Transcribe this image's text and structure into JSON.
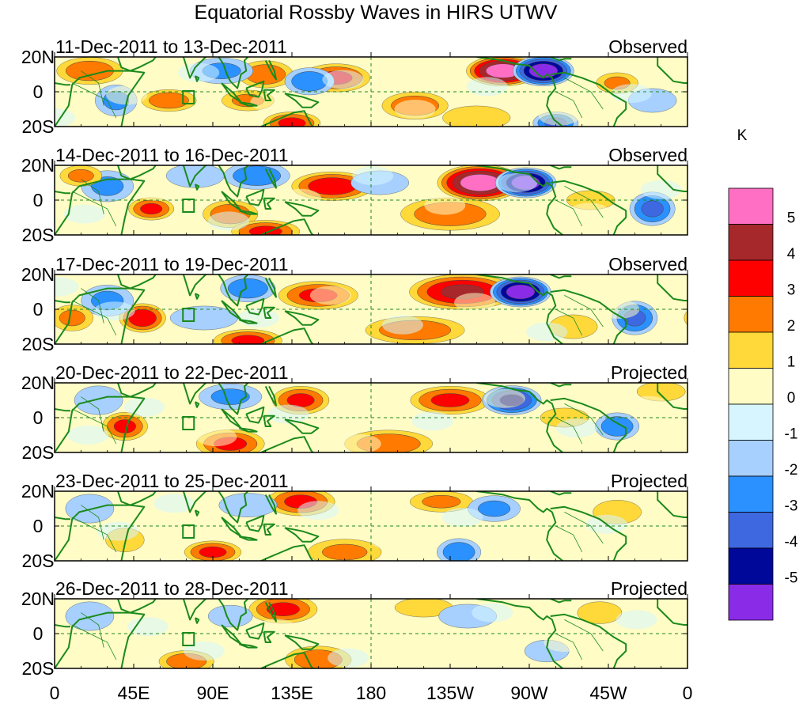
{
  "chart_data": {
    "type": "heatmap",
    "title": "Equatorial Rossby Waves in HIRS UTWV",
    "unit": "K",
    "colorbar": {
      "levels": [
        5,
        4,
        3,
        2,
        1,
        0,
        -1,
        -2,
        -3,
        -4,
        -5
      ],
      "colors": [
        "#ff6fc3",
        "#a6282b",
        "#ff0000",
        "#ff7a00",
        "#ffd83a",
        "#fffcc6",
        "#d6f5ff",
        "#a7d0ff",
        "#2a91ff",
        "#3d68e0",
        "#00089a",
        "#8a2be8"
      ]
    },
    "x_ticks": [
      "0",
      "45E",
      "90E",
      "135E",
      "180",
      "135W",
      "90W",
      "45W",
      "0"
    ],
    "x_lon": [
      0,
      45,
      90,
      135,
      180,
      225,
      270,
      315,
      360
    ],
    "y_ticks": [
      "20N",
      "0",
      "20S"
    ],
    "y_lat": [
      20,
      0,
      -20
    ],
    "panels": [
      {
        "date": "11-Dec-2011 to 13-Dec-2011",
        "status": "Observed",
        "anomalies": [
          {
            "lon": 255,
            "lat": 12,
            "value": 5.5,
            "slon": 12,
            "slat": 5
          },
          {
            "lon": 278,
            "lat": 12,
            "value": -5.5,
            "slon": 10,
            "slat": 5
          },
          {
            "lon": 160,
            "lat": 8,
            "value": 3,
            "slon": 12,
            "slat": 5
          },
          {
            "lon": 120,
            "lat": 10,
            "value": 2.5,
            "slon": 10,
            "slat": 5
          },
          {
            "lon": 145,
            "lat": 6,
            "value": -2.5,
            "slon": 9,
            "slat": 5
          },
          {
            "lon": 65,
            "lat": -5,
            "value": 2.5,
            "slon": 10,
            "slat": 4
          },
          {
            "lon": 110,
            "lat": -5,
            "value": 2,
            "slon": 10,
            "slat": 4
          },
          {
            "lon": 205,
            "lat": -8,
            "value": 2.5,
            "slon": 12,
            "slat": 5
          },
          {
            "lon": 135,
            "lat": -18,
            "value": 3,
            "slon": 10,
            "slat": 4
          },
          {
            "lon": 240,
            "lat": -15,
            "value": 1.5,
            "slon": 14,
            "slat": 5
          },
          {
            "lon": 20,
            "lat": 12,
            "value": 2.5,
            "slon": 12,
            "slat": 5
          },
          {
            "lon": 285,
            "lat": -18,
            "value": -3,
            "slon": 8,
            "slat": 4
          },
          {
            "lon": 95,
            "lat": 12,
            "value": -2,
            "slon": 12,
            "slat": 5
          },
          {
            "lon": 35,
            "lat": -5,
            "value": -2,
            "slon": 8,
            "slat": 6
          },
          {
            "lon": 320,
            "lat": 5,
            "value": 2,
            "slon": 8,
            "slat": 4
          },
          {
            "lon": 340,
            "lat": -5,
            "value": -1.5,
            "slon": 10,
            "slat": 5
          }
        ]
      },
      {
        "date": "14-Dec-2011 to 16-Dec-2011",
        "status": "Observed",
        "anomalies": [
          {
            "lon": 242,
            "lat": 10,
            "value": 5.5,
            "slon": 14,
            "slat": 6
          },
          {
            "lon": 268,
            "lat": 10,
            "value": -5.5,
            "slon": 10,
            "slat": 5
          },
          {
            "lon": 158,
            "lat": 8,
            "value": 3.5,
            "slon": 14,
            "slat": 5
          },
          {
            "lon": 115,
            "lat": 14,
            "value": -2.5,
            "slon": 12,
            "slat": 5
          },
          {
            "lon": 80,
            "lat": 14,
            "value": -1.5,
            "slon": 12,
            "slat": 5
          },
          {
            "lon": 55,
            "lat": -5,
            "value": 3,
            "slon": 8,
            "slat": 4
          },
          {
            "lon": 100,
            "lat": -8,
            "value": 2.5,
            "slon": 10,
            "slat": 5
          },
          {
            "lon": 120,
            "lat": -18,
            "value": 3,
            "slon": 12,
            "slat": 4
          },
          {
            "lon": 225,
            "lat": -8,
            "value": 2.5,
            "slon": 18,
            "slat": 6
          },
          {
            "lon": 340,
            "lat": -5,
            "value": -3,
            "slon": 8,
            "slat": 6
          },
          {
            "lon": 30,
            "lat": 8,
            "value": -2,
            "slon": 10,
            "slat": 6
          },
          {
            "lon": 15,
            "lat": 14,
            "value": 2,
            "slon": 8,
            "slat": 4
          },
          {
            "lon": 305,
            "lat": 0,
            "value": 1.5,
            "slon": 10,
            "slat": 4
          },
          {
            "lon": 185,
            "lat": 10,
            "value": -1.5,
            "slon": 12,
            "slat": 5
          }
        ]
      },
      {
        "date": "17-Dec-2011 to 19-Dec-2011",
        "status": "Observed",
        "anomalies": [
          {
            "lon": 232,
            "lat": 10,
            "value": 4,
            "slon": 18,
            "slat": 6
          },
          {
            "lon": 265,
            "lat": 10,
            "value": -5.5,
            "slon": 10,
            "slat": 5
          },
          {
            "lon": 150,
            "lat": 8,
            "value": 3,
            "slon": 14,
            "slat": 5
          },
          {
            "lon": 110,
            "lat": 12,
            "value": -2.5,
            "slon": 10,
            "slat": 5
          },
          {
            "lon": 50,
            "lat": -5,
            "value": 3.5,
            "slon": 8,
            "slat": 5
          },
          {
            "lon": 110,
            "lat": -18,
            "value": 3,
            "slon": 12,
            "slat": 4
          },
          {
            "lon": 205,
            "lat": -12,
            "value": 2.5,
            "slon": 18,
            "slat": 5
          },
          {
            "lon": 330,
            "lat": -5,
            "value": -3,
            "slon": 8,
            "slat": 6
          },
          {
            "lon": 30,
            "lat": 5,
            "value": -2,
            "slon": 10,
            "slat": 6
          },
          {
            "lon": 10,
            "lat": -5,
            "value": 2,
            "slon": 8,
            "slat": 5
          },
          {
            "lon": 85,
            "lat": -5,
            "value": -1.5,
            "slon": 14,
            "slat": 5
          },
          {
            "lon": 295,
            "lat": -10,
            "value": 1.5,
            "slon": 10,
            "slat": 5
          }
        ]
      },
      {
        "date": "20-Dec-2011 to 22-Dec-2011",
        "status": "Projected",
        "anomalies": [
          {
            "lon": 225,
            "lat": 10,
            "value": 3,
            "slon": 14,
            "slat": 5
          },
          {
            "lon": 260,
            "lat": 10,
            "value": -4,
            "slon": 10,
            "slat": 5
          },
          {
            "lon": 140,
            "lat": 10,
            "value": 3,
            "slon": 10,
            "slat": 5
          },
          {
            "lon": 100,
            "lat": 12,
            "value": -2,
            "slon": 12,
            "slat": 5
          },
          {
            "lon": 40,
            "lat": -5,
            "value": 3,
            "slon": 8,
            "slat": 5
          },
          {
            "lon": 100,
            "lat": -15,
            "value": 3,
            "slon": 12,
            "slat": 5
          },
          {
            "lon": 190,
            "lat": -15,
            "value": 2.5,
            "slon": 16,
            "slat": 5
          },
          {
            "lon": 320,
            "lat": -5,
            "value": -2.5,
            "slon": 8,
            "slat": 5
          },
          {
            "lon": 25,
            "lat": 10,
            "value": -1.5,
            "slon": 10,
            "slat": 6
          },
          {
            "lon": 290,
            "lat": 0,
            "value": 1.5,
            "slon": 10,
            "slat": 4
          },
          {
            "lon": 345,
            "lat": 15,
            "value": 1.5,
            "slon": 10,
            "slat": 4
          }
        ]
      },
      {
        "date": "23-Dec-2011 to 25-Dec-2011",
        "status": "Projected",
        "anomalies": [
          {
            "lon": 140,
            "lat": 14,
            "value": 3,
            "slon": 12,
            "slat": 5
          },
          {
            "lon": 220,
            "lat": 14,
            "value": 2,
            "slon": 12,
            "slat": 4
          },
          {
            "lon": 250,
            "lat": 10,
            "value": -2,
            "slon": 10,
            "slat": 5
          },
          {
            "lon": 90,
            "lat": -15,
            "value": 3,
            "slon": 10,
            "slat": 4
          },
          {
            "lon": 165,
            "lat": -15,
            "value": 2,
            "slon": 14,
            "slat": 5
          },
          {
            "lon": 230,
            "lat": -15,
            "value": -2.5,
            "slon": 8,
            "slat": 5
          },
          {
            "lon": 320,
            "lat": 8,
            "value": 1.5,
            "slon": 10,
            "slat": 5
          },
          {
            "lon": 20,
            "lat": 10,
            "value": -1.5,
            "slon": 10,
            "slat": 6
          },
          {
            "lon": 40,
            "lat": -8,
            "value": 1.5,
            "slon": 8,
            "slat": 5
          },
          {
            "lon": 110,
            "lat": 12,
            "value": -1.5,
            "slon": 12,
            "slat": 5
          }
        ]
      },
      {
        "date": "26-Dec-2011 to 28-Dec-2011",
        "status": "Projected",
        "anomalies": [
          {
            "lon": 130,
            "lat": 14,
            "value": 3,
            "slon": 12,
            "slat": 5
          },
          {
            "lon": 210,
            "lat": 15,
            "value": 1.5,
            "slon": 12,
            "slat": 4
          },
          {
            "lon": 75,
            "lat": -16,
            "value": 2.5,
            "slon": 10,
            "slat": 4
          },
          {
            "lon": 150,
            "lat": -15,
            "value": 2.5,
            "slon": 12,
            "slat": 5
          },
          {
            "lon": 235,
            "lat": 10,
            "value": -1.5,
            "slon": 12,
            "slat": 5
          },
          {
            "lon": 20,
            "lat": 10,
            "value": -1.5,
            "slon": 10,
            "slat": 6
          },
          {
            "lon": 310,
            "lat": 12,
            "value": 1.2,
            "slon": 10,
            "slat": 5
          },
          {
            "lon": 100,
            "lat": 10,
            "value": -1.2,
            "slon": 10,
            "slat": 5
          },
          {
            "lon": 280,
            "lat": -10,
            "value": -1.2,
            "slon": 10,
            "slat": 5
          }
        ]
      }
    ]
  }
}
